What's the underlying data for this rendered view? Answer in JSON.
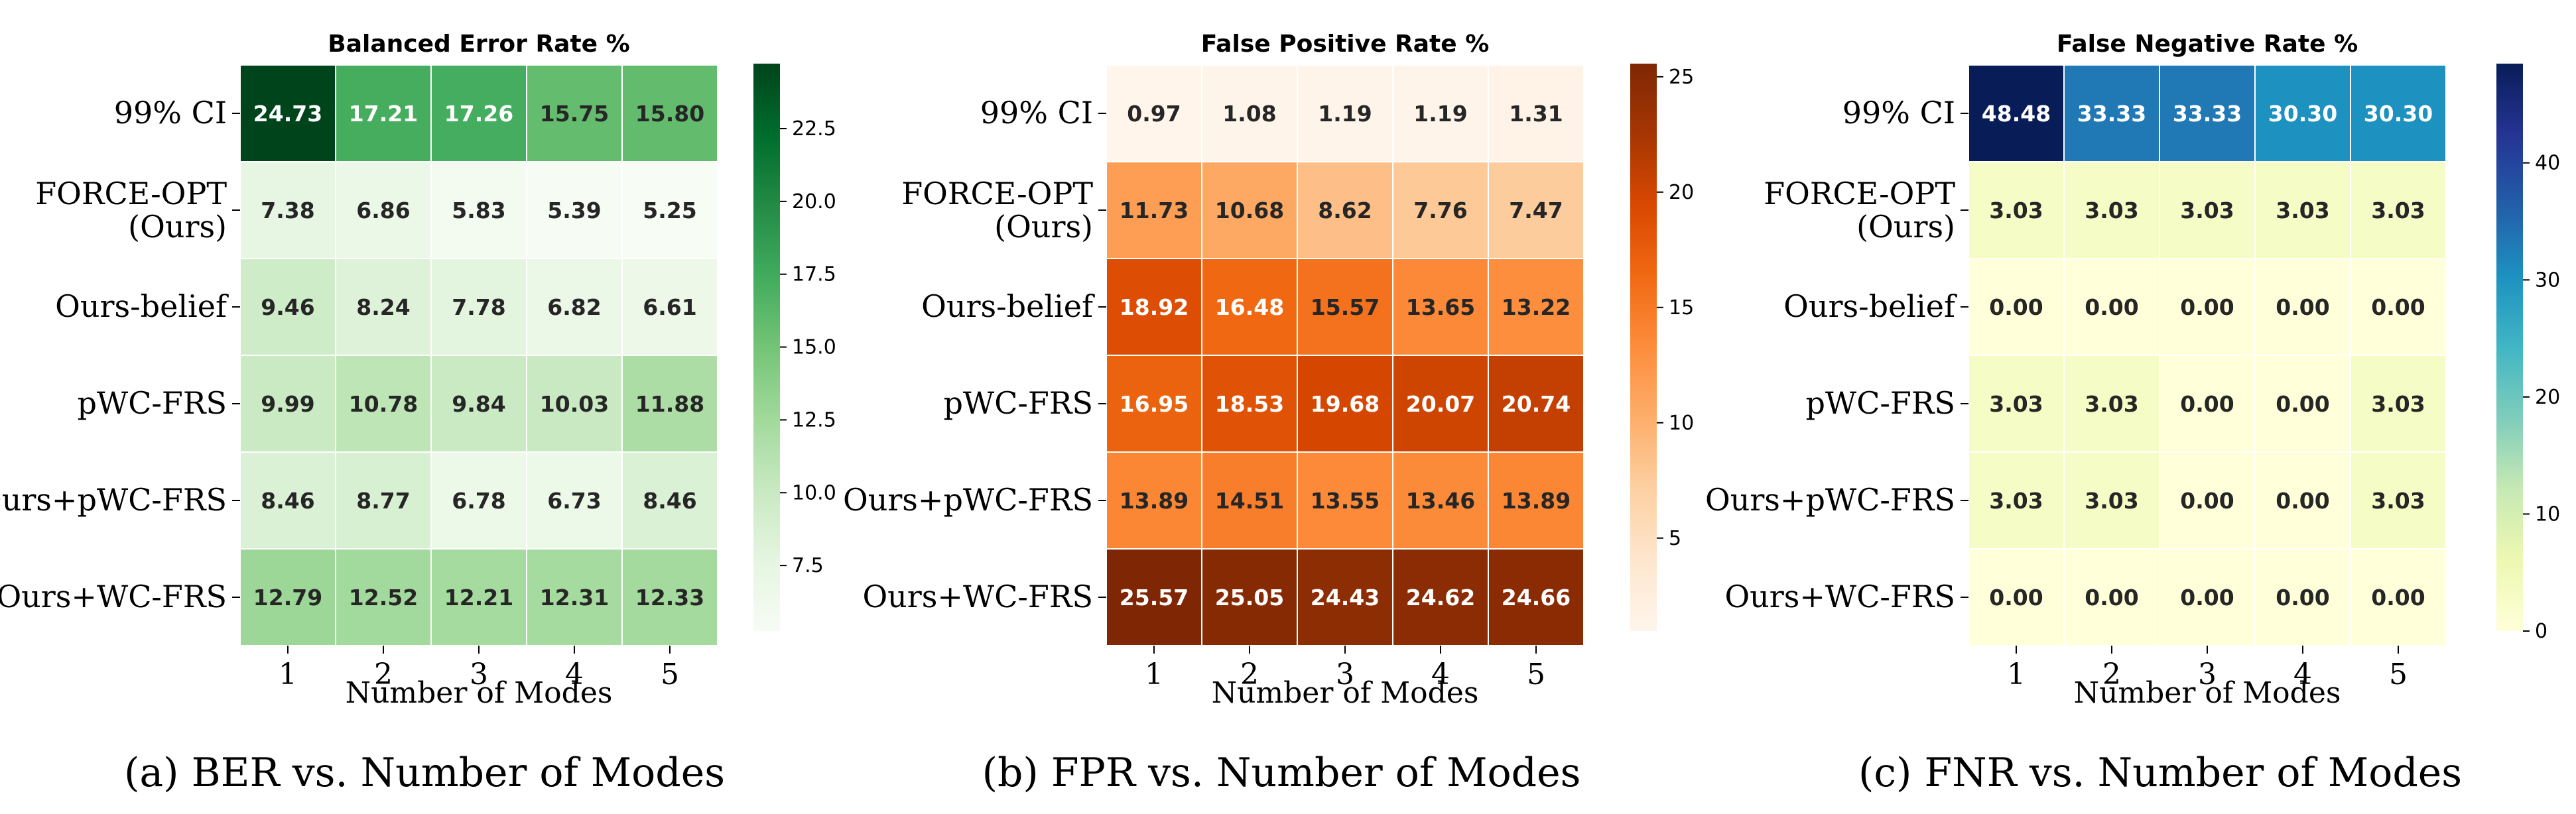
{
  "chart_data": [
    {
      "type": "heatmap",
      "title": "Balanced Error Rate %",
      "caption": "(a) BER vs. Number of Modes",
      "xlabel": "Number of Modes",
      "ylabel": "",
      "x": [
        "1",
        "2",
        "3",
        "4",
        "5"
      ],
      "y": [
        "99% CI",
        "FORCE-OPT (Ours)",
        "Ours-belief",
        "pWC-FRS",
        "Ours+pWC-FRS",
        "Ours+WC-FRS"
      ],
      "values": [
        [
          24.73,
          17.21,
          17.26,
          15.75,
          15.8
        ],
        [
          7.38,
          6.86,
          5.83,
          5.39,
          5.25
        ],
        [
          9.46,
          8.24,
          7.78,
          6.82,
          6.61
        ],
        [
          9.99,
          10.78,
          9.84,
          10.03,
          11.88
        ],
        [
          8.46,
          8.77,
          6.78,
          6.73,
          8.46
        ],
        [
          12.79,
          12.52,
          12.21,
          12.31,
          12.33
        ]
      ],
      "value_labels": [
        [
          "24.73",
          "17.21",
          "17.26",
          "15.75",
          "15.80"
        ],
        [
          "7.38",
          "6.86",
          "5.83",
          "5.39",
          "5.25"
        ],
        [
          "9.46",
          "8.24",
          "7.78",
          "6.82",
          "6.61"
        ],
        [
          "9.99",
          "10.78",
          "9.84",
          "10.03",
          "11.88"
        ],
        [
          "8.46",
          "8.77",
          "6.78",
          "6.73",
          "8.46"
        ],
        [
          "12.79",
          "12.52",
          "12.21",
          "12.31",
          "12.33"
        ]
      ],
      "colormap": "Greens",
      "colors": [
        "#f7fcf5",
        "#e5f5e0",
        "#c7e9c0",
        "#a1d99b",
        "#74c476",
        "#41ab5d",
        "#238b45",
        "#006d2c",
        "#00441b"
      ],
      "color_range": [
        5.25,
        24.73
      ],
      "colorbar_ticks": [
        7.5,
        10.0,
        12.5,
        15.0,
        17.5,
        20.0,
        22.5
      ],
      "colorbar_tick_labels": [
        "7.5",
        "10.0",
        "12.5",
        "15.0",
        "17.5",
        "20.0",
        "22.5"
      ]
    },
    {
      "type": "heatmap",
      "title": "False Positive Rate %",
      "caption": "(b) FPR vs. Number of Modes",
      "xlabel": "Number of Modes",
      "ylabel": "",
      "x": [
        "1",
        "2",
        "3",
        "4",
        "5"
      ],
      "y": [
        "99% CI",
        "FORCE-OPT (Ours)",
        "Ours-belief",
        "pWC-FRS",
        "Ours+pWC-FRS",
        "Ours+WC-FRS"
      ],
      "values": [
        [
          0.97,
          1.08,
          1.19,
          1.19,
          1.31
        ],
        [
          11.73,
          10.68,
          8.62,
          7.76,
          7.47
        ],
        [
          18.92,
          16.48,
          15.57,
          13.65,
          13.22
        ],
        [
          16.95,
          18.53,
          19.68,
          20.07,
          20.74
        ],
        [
          13.89,
          14.51,
          13.55,
          13.46,
          13.89
        ],
        [
          25.57,
          25.05,
          24.43,
          24.62,
          24.66
        ]
      ],
      "value_labels": [
        [
          "0.97",
          "1.08",
          "1.19",
          "1.19",
          "1.31"
        ],
        [
          "11.73",
          "10.68",
          "8.62",
          "7.76",
          "7.47"
        ],
        [
          "18.92",
          "16.48",
          "15.57",
          "13.65",
          "13.22"
        ],
        [
          "16.95",
          "18.53",
          "19.68",
          "20.07",
          "20.74"
        ],
        [
          "13.89",
          "14.51",
          "13.55",
          "13.46",
          "13.89"
        ],
        [
          "25.57",
          "25.05",
          "24.43",
          "24.62",
          "24.66"
        ]
      ],
      "colormap": "Oranges",
      "colors": [
        "#fff5eb",
        "#fee6ce",
        "#fdd0a2",
        "#fdae6b",
        "#fd8d3c",
        "#f16913",
        "#d94801",
        "#a63603",
        "#7f2704"
      ],
      "color_range": [
        0.97,
        25.57
      ],
      "colorbar_ticks": [
        5,
        10,
        15,
        20,
        25
      ],
      "colorbar_tick_labels": [
        "5",
        "10",
        "15",
        "20",
        "25"
      ]
    },
    {
      "type": "heatmap",
      "title": "False Negative Rate %",
      "caption": "(c) FNR vs. Number of Modes",
      "xlabel": "Number of Modes",
      "ylabel": "",
      "x": [
        "1",
        "2",
        "3",
        "4",
        "5"
      ],
      "y": [
        "99% CI",
        "FORCE-OPT (Ours)",
        "Ours-belief",
        "pWC-FRS",
        "Ours+pWC-FRS",
        "Ours+WC-FRS"
      ],
      "values": [
        [
          48.48,
          33.33,
          33.33,
          30.3,
          30.3
        ],
        [
          3.03,
          3.03,
          3.03,
          3.03,
          3.03
        ],
        [
          0.0,
          0.0,
          0.0,
          0.0,
          0.0
        ],
        [
          3.03,
          3.03,
          0.0,
          0.0,
          3.03
        ],
        [
          3.03,
          3.03,
          0.0,
          0.0,
          3.03
        ],
        [
          0.0,
          0.0,
          0.0,
          0.0,
          0.0
        ]
      ],
      "value_labels": [
        [
          "48.48",
          "33.33",
          "33.33",
          "30.30",
          "30.30"
        ],
        [
          "3.03",
          "3.03",
          "3.03",
          "3.03",
          "3.03"
        ],
        [
          "0.00",
          "0.00",
          "0.00",
          "0.00",
          "0.00"
        ],
        [
          "3.03",
          "3.03",
          "0.00",
          "0.00",
          "3.03"
        ],
        [
          "3.03",
          "3.03",
          "0.00",
          "0.00",
          "3.03"
        ],
        [
          "0.00",
          "0.00",
          "0.00",
          "0.00",
          "0.00"
        ]
      ],
      "colormap": "YlGnBu",
      "colors": [
        "#ffffd9",
        "#edf8b1",
        "#c7e9b4",
        "#7fcdbb",
        "#41b6c4",
        "#1d91c0",
        "#225ea8",
        "#253494",
        "#081d58"
      ],
      "color_range": [
        0.0,
        48.48
      ],
      "colorbar_ticks": [
        0,
        10,
        20,
        30,
        40
      ],
      "colorbar_tick_labels": [
        "0",
        "10",
        "20",
        "30",
        "40"
      ]
    }
  ]
}
